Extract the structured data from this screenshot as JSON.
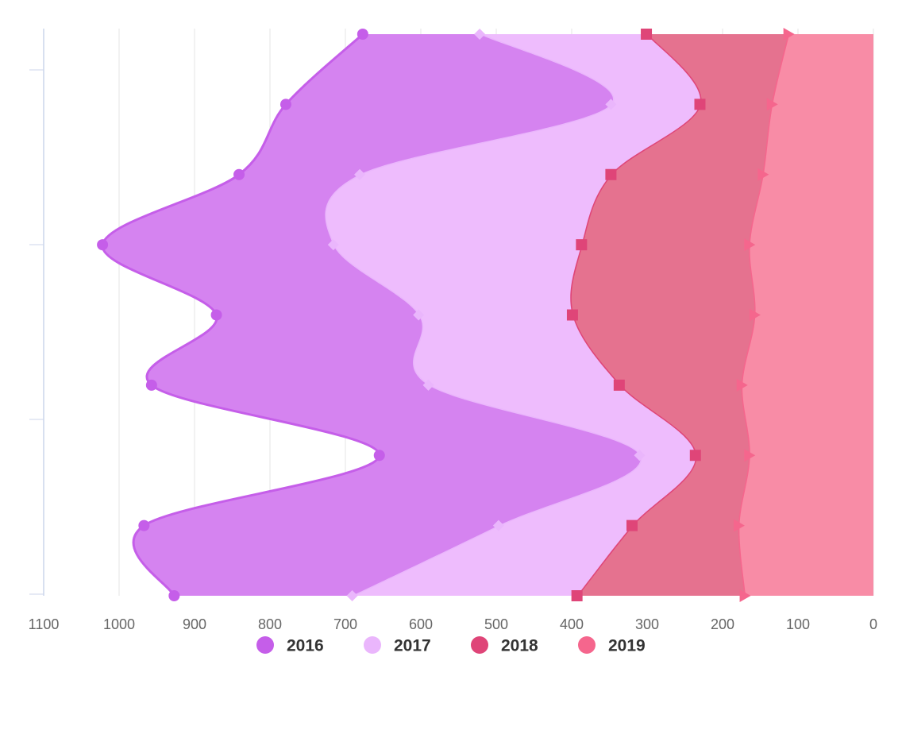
{
  "chart_data": {
    "type": "area",
    "stacked": true,
    "inverted": true,
    "x_reversed": true,
    "categories": [
      null,
      null,
      null,
      null,
      null,
      null,
      null,
      null,
      null
    ],
    "series": [
      {
        "name": "2016",
        "color": "#c55ee9",
        "fill": "#d583f0",
        "marker": "circle",
        "values": [
          155,
          431,
          160,
          306,
          268,
          367,
          345,
          470,
          236
        ]
      },
      {
        "name": "2017",
        "color": "#eab6fc",
        "fill": "#eebcfd",
        "marker": "diamond",
        "values": [
          221,
          118,
          333,
          329,
          204,
          253,
          74,
          177,
          298
        ]
      },
      {
        "name": "2018",
        "color": "#df4578",
        "fill": "#e5728f",
        "marker": "square",
        "values": [
          188,
          95,
          201,
          222,
          241,
          162,
          71,
          141,
          222
        ]
      },
      {
        "name": "2019",
        "color": "#f5668d",
        "fill": "#f88ca6",
        "marker": "triangle",
        "values": [
          113,
          135,
          147,
          165,
          158,
          175,
          165,
          179,
          171
        ]
      }
    ],
    "xlim": [
      0,
      1100
    ],
    "xticks": [
      0,
      100,
      200,
      300,
      400,
      500,
      600,
      700,
      800,
      900,
      1000,
      1100
    ],
    "grid": true
  }
}
